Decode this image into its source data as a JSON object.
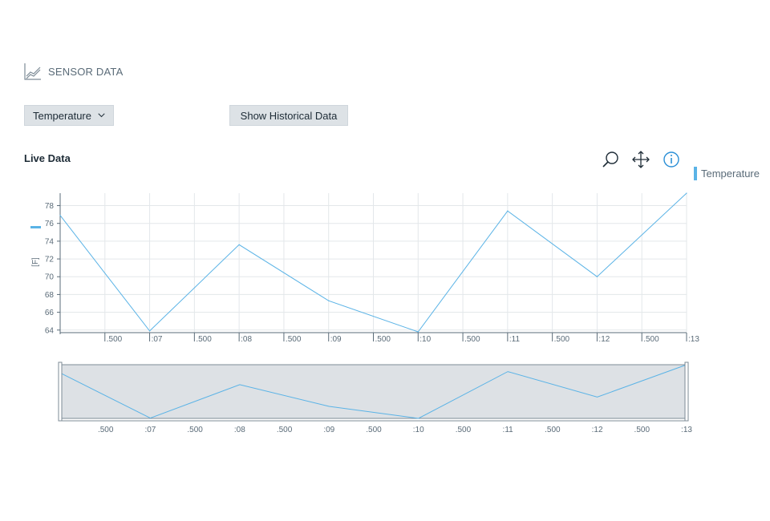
{
  "header": {
    "title": "SENSOR DATA",
    "icon": "chart-line-icon"
  },
  "controls": {
    "sensor_select": "Temperature",
    "historical_button": "Show Historical Data"
  },
  "live": {
    "title": "Live Data"
  },
  "legend": {
    "label": "Temperature",
    "color": "#5ab3e6"
  },
  "chart_data": {
    "type": "line",
    "title": "",
    "ylabel": "[F]",
    "xlabel": "",
    "ylim": [
      63.8,
      79.4
    ],
    "y_ticks": [
      64,
      66,
      68,
      70,
      72,
      74,
      76,
      78
    ],
    "x_tick_labels": [
      ".500",
      ":07",
      ".500",
      ":08",
      ".500",
      ":09",
      ".500",
      ":10",
      ".500",
      ":11",
      ".500",
      ":12",
      ".500",
      ":13"
    ],
    "series": [
      {
        "name": "Temperature",
        "color": "#5ab3e6",
        "x": [
          6.0,
          7.0,
          8.0,
          9.0,
          10.0,
          11.0,
          12.0,
          13.0
        ],
        "values": [
          76.9,
          63.9,
          73.6,
          67.3,
          63.8,
          77.4,
          70.0,
          79.4
        ]
      }
    ],
    "grid": true
  }
}
